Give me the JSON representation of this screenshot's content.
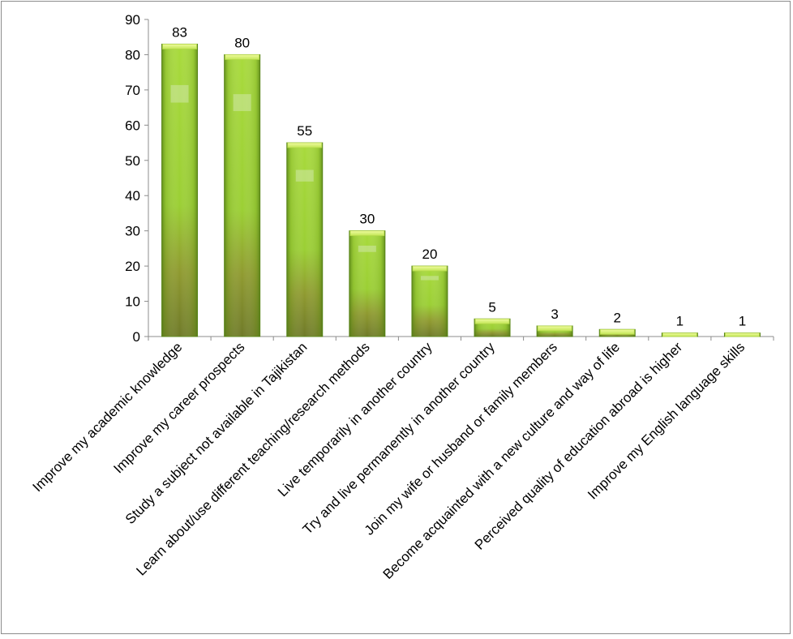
{
  "chart_data": {
    "type": "bar",
    "title": "",
    "xlabel": "",
    "ylabel": "",
    "ylim": [
      0,
      90
    ],
    "yticks": [
      0,
      10,
      20,
      30,
      40,
      50,
      60,
      70,
      80,
      90
    ],
    "grid": false,
    "legend": "none",
    "categories": [
      "Improve my academic knowledge",
      "Improve my career prospects",
      "Study a subject not available in Tajikistan",
      "Learn about/use different teaching/research methods",
      "Live temporarily in another country",
      "Try and live permanently in another country",
      "Join my wife or husband or family members",
      "Become acquainted with a new culture and way of life",
      "Perceived quality of education abroad is higher",
      "Improve my English language skills"
    ],
    "values": [
      83,
      80,
      55,
      30,
      20,
      5,
      3,
      2,
      1,
      1
    ],
    "colors": {
      "bar_top": "#a6d83a",
      "bar_bottom": "#7a7a2a",
      "bar_edge": "#5e8a1c",
      "cap": "#e4f58a",
      "axis": "#8c8c8c"
    }
  }
}
